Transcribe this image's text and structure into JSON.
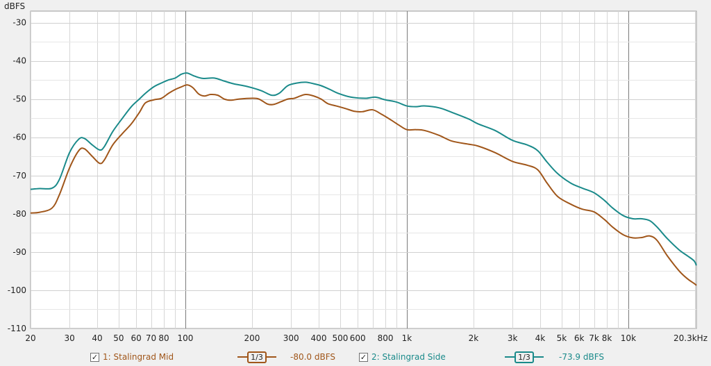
{
  "chart_data": {
    "type": "line",
    "ylabel": "dBFS",
    "xscale": "log",
    "xlim": [
      20,
      20300
    ],
    "ylim": [
      -110,
      -27
    ],
    "grid": true,
    "yticks": [
      -30,
      -40,
      -50,
      -60,
      -70,
      -80,
      -90,
      -100,
      -110
    ],
    "xticks": [
      {
        "v": 20,
        "label": "20"
      },
      {
        "v": 30,
        "label": "30"
      },
      {
        "v": 40,
        "label": "40"
      },
      {
        "v": 50,
        "label": "50"
      },
      {
        "v": 60,
        "label": "60"
      },
      {
        "v": 70,
        "label": "70"
      },
      {
        "v": 80,
        "label": "80"
      },
      {
        "v": 100,
        "label": "100"
      },
      {
        "v": 200,
        "label": "200"
      },
      {
        "v": 300,
        "label": "300"
      },
      {
        "v": 400,
        "label": "400"
      },
      {
        "v": 500,
        "label": "500"
      },
      {
        "v": 600,
        "label": "600"
      },
      {
        "v": 800,
        "label": "800"
      },
      {
        "v": 1000,
        "label": "1k"
      },
      {
        "v": 2000,
        "label": "2k"
      },
      {
        "v": 3000,
        "label": "3k"
      },
      {
        "v": 4000,
        "label": "4k"
      },
      {
        "v": 5000,
        "label": "5k"
      },
      {
        "v": 6000,
        "label": "6k"
      },
      {
        "v": 7000,
        "label": "7k"
      },
      {
        "v": 8000,
        "label": "8k"
      },
      {
        "v": 10000,
        "label": "10k"
      },
      {
        "v": 20300,
        "label": "20.3kHz"
      }
    ],
    "series": [
      {
        "name": "1: Stalingrad Mid",
        "color": "#a0561a",
        "points": [
          [
            20,
            -79.8
          ],
          [
            22,
            -79.6
          ],
          [
            25,
            -78.5
          ],
          [
            27,
            -75
          ],
          [
            30,
            -68
          ],
          [
            33,
            -63.5
          ],
          [
            35,
            -63
          ],
          [
            38,
            -65
          ],
          [
            41,
            -66.8
          ],
          [
            43,
            -66
          ],
          [
            47,
            -62
          ],
          [
            52,
            -59
          ],
          [
            57,
            -56.5
          ],
          [
            62,
            -53.5
          ],
          [
            66,
            -51
          ],
          [
            72,
            -50.2
          ],
          [
            78,
            -49.8
          ],
          [
            84,
            -48.5
          ],
          [
            90,
            -47.5
          ],
          [
            96,
            -46.8
          ],
          [
            102,
            -46.3
          ],
          [
            108,
            -47
          ],
          [
            115,
            -48.7
          ],
          [
            122,
            -49.2
          ],
          [
            130,
            -48.8
          ],
          [
            140,
            -49
          ],
          [
            150,
            -50
          ],
          [
            160,
            -50.3
          ],
          [
            175,
            -50
          ],
          [
            200,
            -49.8
          ],
          [
            215,
            -50
          ],
          [
            235,
            -51.3
          ],
          [
            250,
            -51.4
          ],
          [
            270,
            -50.7
          ],
          [
            290,
            -50
          ],
          [
            310,
            -49.8
          ],
          [
            330,
            -49.2
          ],
          [
            350,
            -48.8
          ],
          [
            380,
            -49.2
          ],
          [
            410,
            -50
          ],
          [
            440,
            -51.2
          ],
          [
            480,
            -51.8
          ],
          [
            530,
            -52.5
          ],
          [
            580,
            -53.2
          ],
          [
            630,
            -53.3
          ],
          [
            700,
            -52.8
          ],
          [
            770,
            -54
          ],
          [
            850,
            -55.5
          ],
          [
            920,
            -56.8
          ],
          [
            1000,
            -58
          ],
          [
            1100,
            -58
          ],
          [
            1200,
            -58.2
          ],
          [
            1400,
            -59.5
          ],
          [
            1600,
            -61
          ],
          [
            1900,
            -61.8
          ],
          [
            2100,
            -62.3
          ],
          [
            2500,
            -64
          ],
          [
            3000,
            -66.3
          ],
          [
            3500,
            -67.3
          ],
          [
            3900,
            -68.5
          ],
          [
            4300,
            -72
          ],
          [
            4800,
            -75.5
          ],
          [
            5500,
            -77.5
          ],
          [
            6200,
            -78.8
          ],
          [
            7000,
            -79.5
          ],
          [
            7800,
            -81.5
          ],
          [
            8500,
            -83.5
          ],
          [
            9500,
            -85.5
          ],
          [
            10500,
            -86.3
          ],
          [
            11500,
            -86.2
          ],
          [
            12500,
            -85.8
          ],
          [
            13500,
            -87
          ],
          [
            15000,
            -91
          ],
          [
            17000,
            -95
          ],
          [
            18500,
            -97
          ],
          [
            19800,
            -98.2
          ],
          [
            20300,
            -98.7
          ]
        ]
      },
      {
        "name": "2: Stalingrad Side",
        "color": "#1a8a8a",
        "points": [
          [
            20,
            -73.6
          ],
          [
            22,
            -73.4
          ],
          [
            25,
            -73.3
          ],
          [
            27,
            -71
          ],
          [
            30,
            -64
          ],
          [
            33,
            -60.5
          ],
          [
            35,
            -60.3
          ],
          [
            38,
            -62
          ],
          [
            41,
            -63.3
          ],
          [
            43,
            -62.5
          ],
          [
            47,
            -58.5
          ],
          [
            52,
            -55
          ],
          [
            57,
            -52
          ],
          [
            62,
            -50
          ],
          [
            66,
            -48.5
          ],
          [
            72,
            -46.8
          ],
          [
            78,
            -45.8
          ],
          [
            84,
            -45
          ],
          [
            90,
            -44.5
          ],
          [
            96,
            -43.5
          ],
          [
            102,
            -43.2
          ],
          [
            110,
            -44
          ],
          [
            120,
            -44.6
          ],
          [
            135,
            -44.5
          ],
          [
            150,
            -45.3
          ],
          [
            165,
            -46
          ],
          [
            190,
            -46.7
          ],
          [
            220,
            -47.8
          ],
          [
            245,
            -49
          ],
          [
            265,
            -48.5
          ],
          [
            290,
            -46.5
          ],
          [
            320,
            -45.8
          ],
          [
            350,
            -45.6
          ],
          [
            380,
            -46
          ],
          [
            410,
            -46.5
          ],
          [
            450,
            -47.5
          ],
          [
            490,
            -48.5
          ],
          [
            560,
            -49.5
          ],
          [
            650,
            -49.8
          ],
          [
            720,
            -49.5
          ],
          [
            800,
            -50.2
          ],
          [
            900,
            -50.8
          ],
          [
            1000,
            -51.8
          ],
          [
            1100,
            -52
          ],
          [
            1200,
            -51.8
          ],
          [
            1400,
            -52.3
          ],
          [
            1600,
            -53.5
          ],
          [
            1900,
            -55.2
          ],
          [
            2100,
            -56.5
          ],
          [
            2500,
            -58.2
          ],
          [
            3000,
            -60.8
          ],
          [
            3500,
            -62
          ],
          [
            3900,
            -63.5
          ],
          [
            4300,
            -66.5
          ],
          [
            4800,
            -69.5
          ],
          [
            5500,
            -72
          ],
          [
            6200,
            -73.3
          ],
          [
            7000,
            -74.5
          ],
          [
            7800,
            -76.5
          ],
          [
            8500,
            -78.5
          ],
          [
            9500,
            -80.5
          ],
          [
            10500,
            -81.3
          ],
          [
            11500,
            -81.3
          ],
          [
            12500,
            -81.8
          ],
          [
            13500,
            -83.5
          ],
          [
            15000,
            -86.5
          ],
          [
            17000,
            -89.5
          ],
          [
            18500,
            -91
          ],
          [
            19800,
            -92.3
          ],
          [
            20300,
            -93.5
          ]
        ]
      }
    ]
  },
  "legend": {
    "items": [
      {
        "label": "1: Stalingrad Mid",
        "smoothing": "1/3",
        "level": "-80.0 dBFS",
        "color": "#a0561a"
      },
      {
        "label": "2: Stalingrad Side",
        "smoothing": "1/3",
        "level": "-73.9 dBFS",
        "color": "#1a8a8a"
      }
    ]
  }
}
